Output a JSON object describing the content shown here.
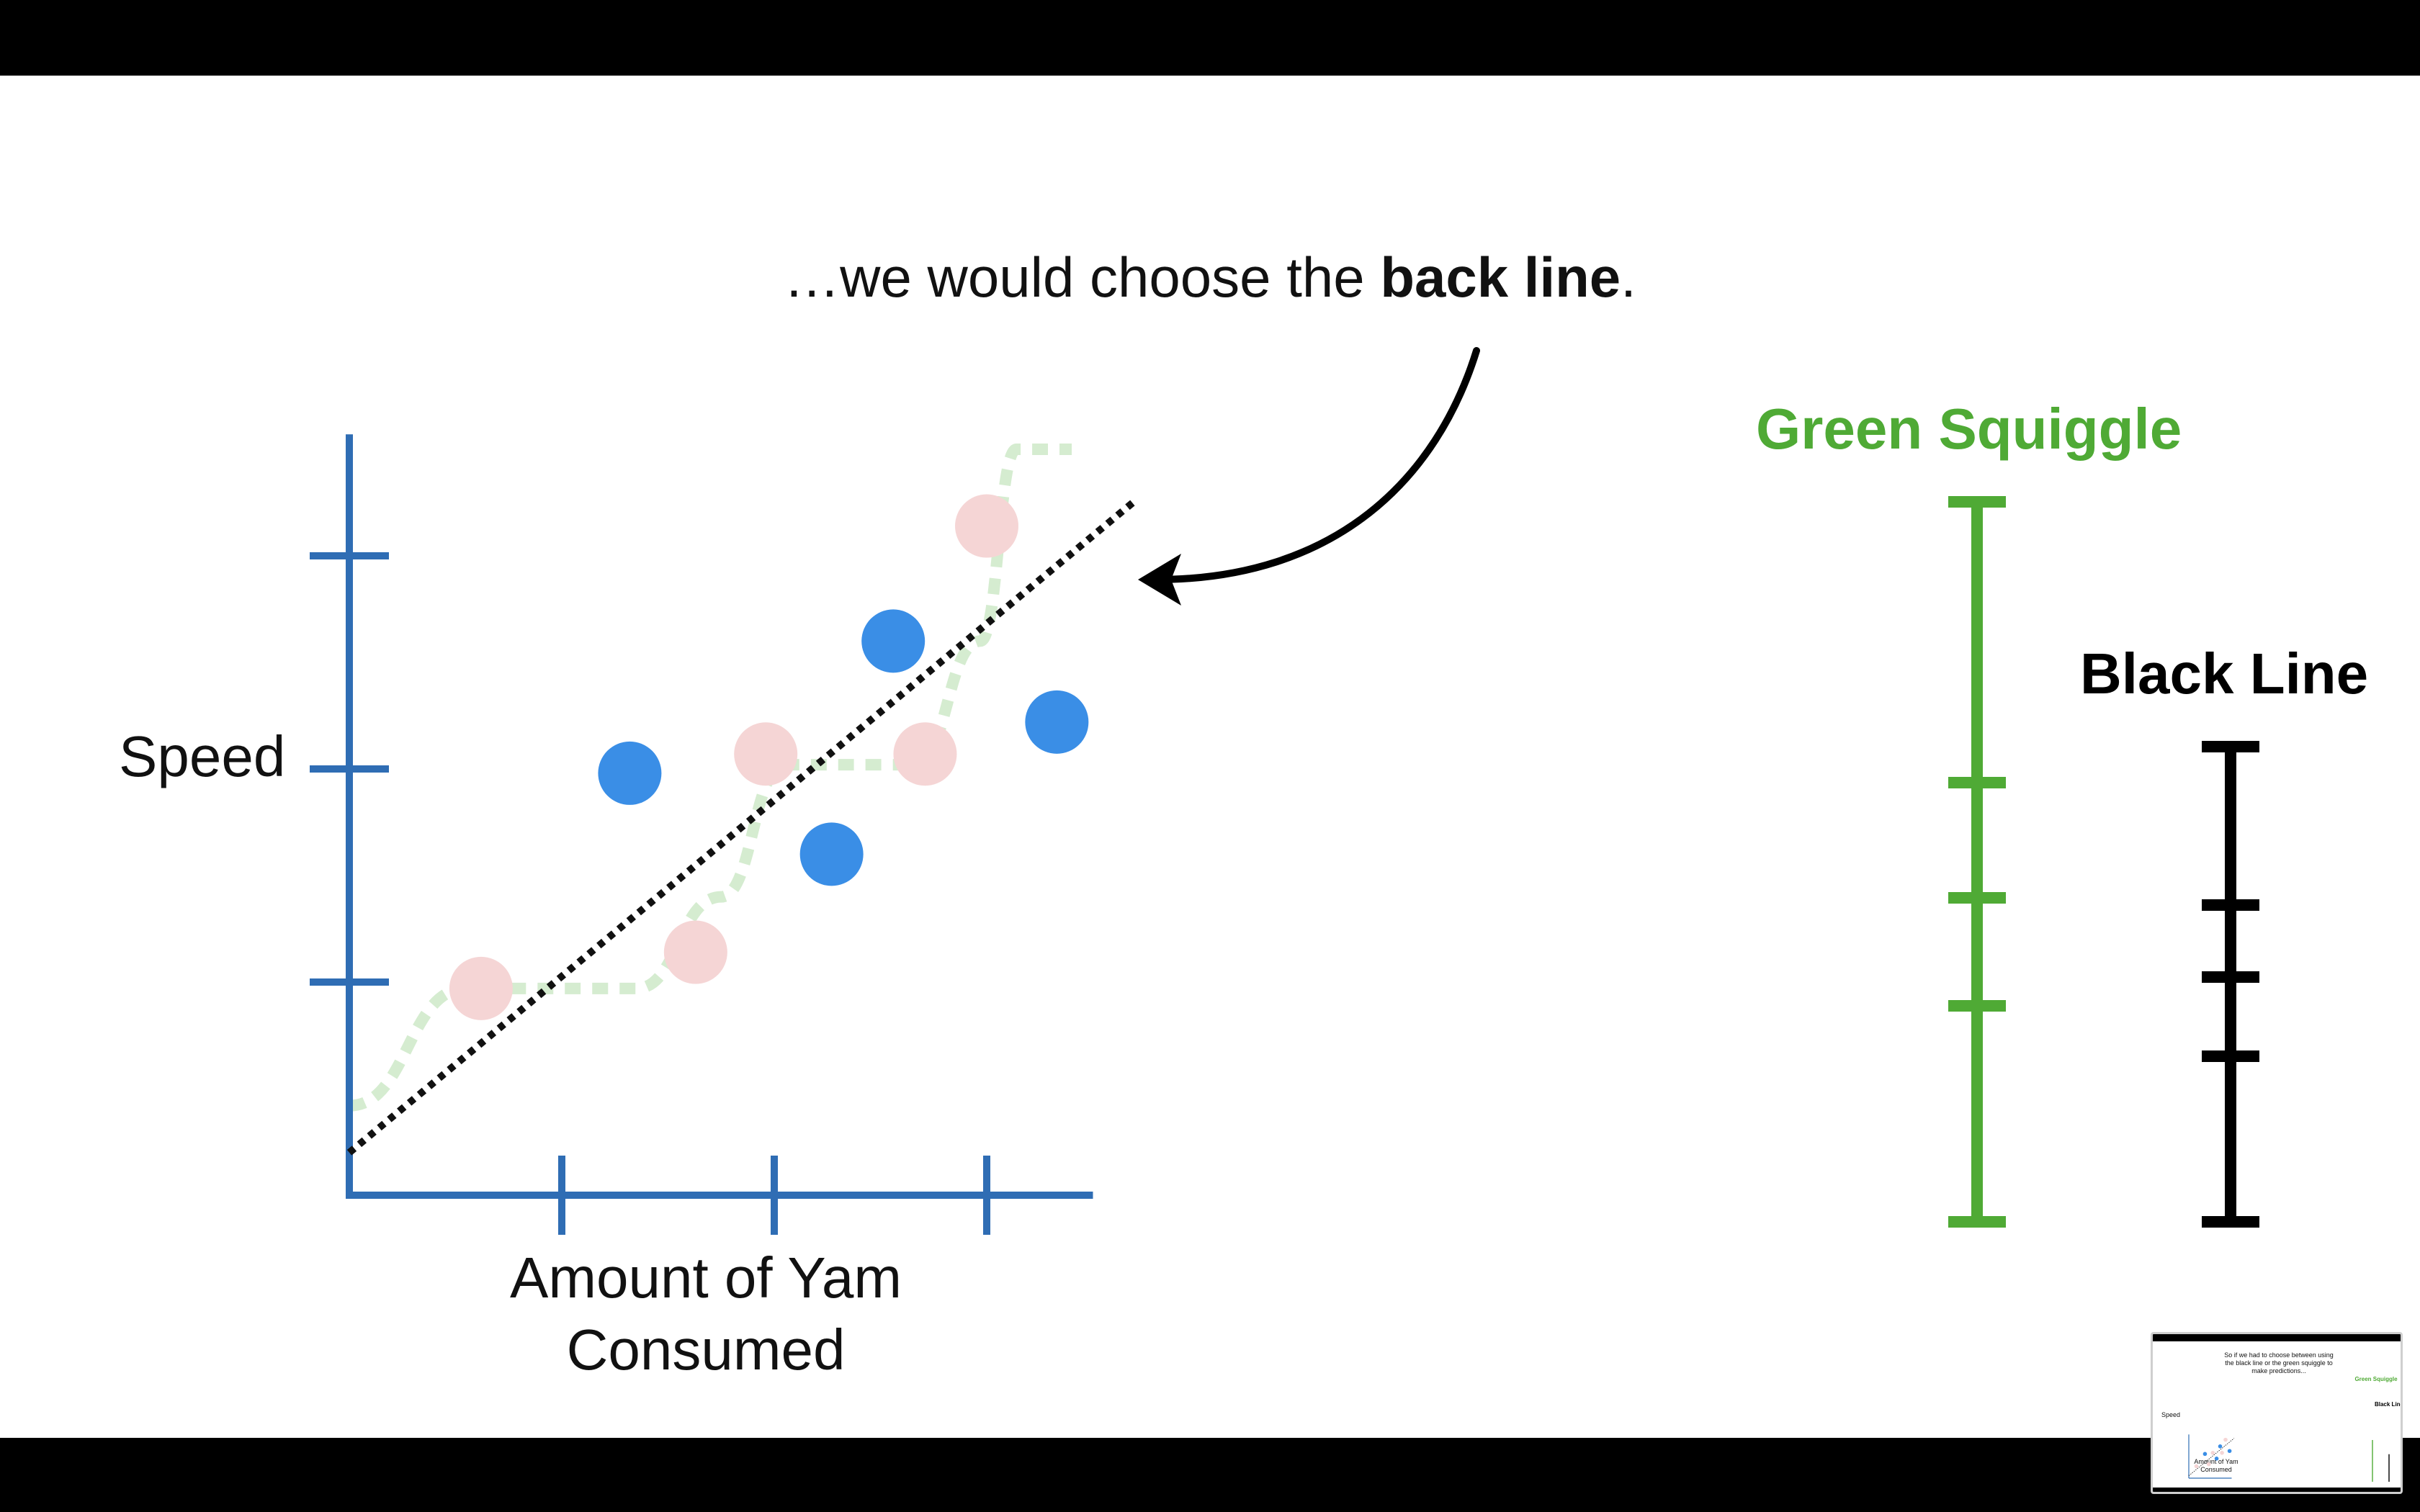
{
  "caption": {
    "prefix": "…we would choose the ",
    "bold": "back line",
    "suffix": "."
  },
  "chart_data": [
    {
      "type": "scatter",
      "title": "",
      "xlabel": "Amount of Yam Consumed",
      "ylabel": "Speed",
      "xlim": [
        0,
        3.5
      ],
      "ylim": [
        0,
        3.2
      ],
      "x_ticks": [
        1,
        2,
        3
      ],
      "y_ticks": [
        1,
        2,
        3
      ],
      "series": [
        {
          "color": "#3a8ee6",
          "points": [
            [
              1.32,
              1.98
            ],
            [
              2.27,
              1.6
            ],
            [
              2.56,
              2.6
            ],
            [
              3.33,
              2.22
            ]
          ]
        },
        {
          "color": "#f5d5d5",
          "points": [
            [
              0.62,
              0.97
            ],
            [
              1.63,
              1.14
            ],
            [
              1.96,
              2.07
            ],
            [
              2.71,
              2.07
            ],
            [
              3.0,
              3.14
            ]
          ]
        },
        {
          "name": "Green Squiggle",
          "color": "#d5ecd0",
          "style": "dashed",
          "points": [
            [
              0.0,
              0.42
            ],
            [
              0.55,
              0.97
            ],
            [
              1.35,
              0.97
            ],
            [
              1.75,
              1.4
            ],
            [
              2.05,
              2.02
            ],
            [
              2.66,
              2.02
            ],
            [
              2.97,
              2.6
            ],
            [
              3.14,
              3.5
            ],
            [
              3.4,
              3.5
            ]
          ]
        },
        {
          "name": "Black Line",
          "color": "#111111",
          "style": "dotted",
          "points": [
            [
              0.0,
              0.2
            ],
            [
              3.7,
              3.26
            ]
          ]
        }
      ]
    },
    {
      "type": "error_bars",
      "title": "",
      "series": [
        {
          "name": "Green Squiggle",
          "color": "#4faa35",
          "ticks": [
            0.0,
            0.3,
            0.45,
            0.61,
            1.0
          ],
          "span": [
            0.0,
            1.0
          ]
        },
        {
          "name": "Black Line",
          "color": "#000000",
          "ticks": [
            0.0,
            0.23,
            0.34,
            0.44,
            0.66
          ],
          "span": [
            0.0,
            0.66
          ]
        }
      ]
    }
  ],
  "colors": {
    "axis": "#2f6db4",
    "green": "#4faa35",
    "black": "#000000"
  },
  "thumbnail": {
    "caption": [
      "So if we had to choose between using",
      "the black line or the green squiggle to",
      "make predictions..."
    ],
    "ylabel": "Speed",
    "xlabel": [
      "Amount of Yam",
      "Consumed"
    ],
    "green_label": "Green Squiggle",
    "black_label": "Black Line"
  }
}
